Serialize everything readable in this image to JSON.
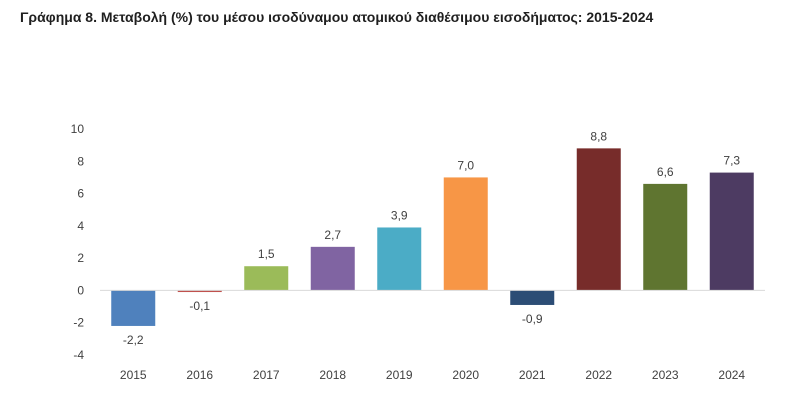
{
  "chart_data": {
    "type": "bar",
    "title": "Γράφημα 8. Μεταβολή (%) του μέσου ισοδύναμου ατομικού διαθέσιμου εισοδήματος: 2015-2024",
    "xlabel": "",
    "ylabel": "",
    "categories": [
      "2015",
      "2016",
      "2017",
      "2018",
      "2019",
      "2020",
      "2021",
      "2022",
      "2023",
      "2024"
    ],
    "values": [
      -2.2,
      -0.1,
      1.5,
      2.7,
      3.9,
      7.0,
      -0.9,
      8.8,
      6.6,
      7.3
    ],
    "value_labels": [
      "-2,2",
      "-0,1",
      "1,5",
      "2,7",
      "3,9",
      "7,0",
      "-0,9",
      "8,8",
      "6,6",
      "7,3"
    ],
    "colors": [
      "#4f81bd",
      "#c0504d",
      "#9bbb59",
      "#8064a2",
      "#4bacc6",
      "#f79646",
      "#2c4d75",
      "#772c2a",
      "#5f7530",
      "#4d3b62"
    ],
    "ylim": [
      -4,
      10
    ],
    "yticks": [
      -4,
      -2,
      0,
      2,
      4,
      6,
      8,
      10
    ],
    "grid": false,
    "legend": "none"
  }
}
